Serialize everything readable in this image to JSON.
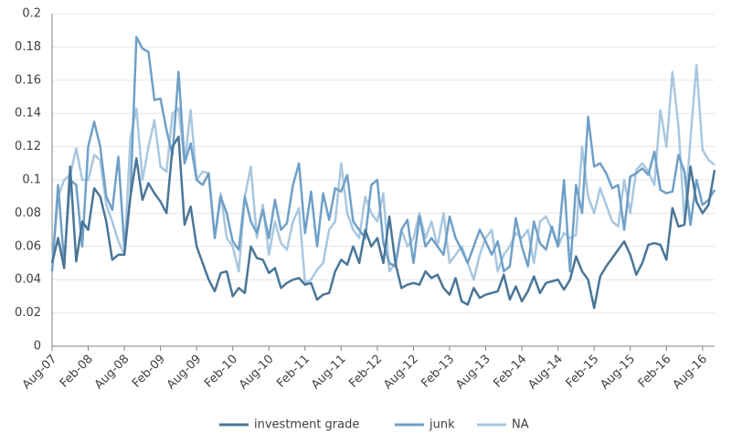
{
  "chart_data": {
    "type": "line",
    "categories": [
      "Aug-07",
      null,
      null,
      null,
      null,
      null,
      "Feb-08",
      null,
      null,
      null,
      null,
      null,
      "Aug-08",
      null,
      null,
      null,
      null,
      null,
      "Feb-09",
      null,
      null,
      null,
      null,
      null,
      "Aug-09",
      null,
      null,
      null,
      null,
      null,
      "Feb-10",
      null,
      null,
      null,
      null,
      null,
      "Aug-10",
      null,
      null,
      null,
      null,
      null,
      "Feb-11",
      null,
      null,
      null,
      null,
      null,
      "Aug-11",
      null,
      null,
      null,
      null,
      null,
      "Feb-12",
      null,
      null,
      null,
      null,
      null,
      "Aug-12",
      null,
      null,
      null,
      null,
      null,
      "Feb-13",
      null,
      null,
      null,
      null,
      null,
      "Aug-13",
      null,
      null,
      null,
      null,
      null,
      "Feb-14",
      null,
      null,
      null,
      null,
      null,
      "Aug-14",
      null,
      null,
      null,
      null,
      null,
      "Feb-15",
      null,
      null,
      null,
      null,
      null,
      "Aug-15",
      null,
      null,
      null,
      null,
      null,
      "Feb-16",
      null,
      null,
      null,
      null,
      null,
      "Aug-16",
      null,
      null
    ],
    "series": [
      {
        "name": "investment grade",
        "color": "#4a7697",
        "values": [
          0.05,
          0.065,
          0.047,
          0.108,
          0.051,
          0.075,
          0.07,
          0.095,
          0.09,
          0.075,
          0.052,
          0.055,
          0.055,
          0.09,
          0.113,
          0.088,
          0.098,
          0.092,
          0.087,
          0.08,
          0.12,
          0.126,
          0.073,
          0.084,
          0.06,
          0.05,
          0.04,
          0.033,
          0.044,
          0.045,
          0.03,
          0.035,
          0.032,
          0.06,
          0.053,
          0.052,
          0.044,
          0.047,
          0.035,
          0.038,
          0.04,
          0.041,
          0.037,
          0.038,
          0.028,
          0.031,
          0.032,
          0.045,
          0.052,
          0.049,
          0.06,
          0.05,
          0.07,
          0.06,
          0.065,
          0.05,
          0.078,
          0.05,
          0.035,
          0.037,
          0.038,
          0.037,
          0.045,
          0.041,
          0.043,
          0.035,
          0.031,
          0.041,
          0.027,
          0.025,
          0.035,
          0.029,
          0.031,
          0.032,
          0.033,
          0.043,
          0.028,
          0.036,
          0.027,
          0.033,
          0.042,
          0.032,
          0.038,
          0.039,
          0.04,
          0.034,
          0.04,
          0.054,
          0.045,
          0.04,
          0.023,
          0.042,
          0.048,
          0.053,
          0.058,
          0.063,
          0.055,
          0.043,
          0.05,
          0.061,
          0.062,
          0.061,
          0.052,
          0.083,
          0.072,
          0.073,
          0.108,
          0.087,
          0.08,
          0.085,
          0.106
        ]
      },
      {
        "name": "junk",
        "color": "#6fa0c8",
        "values": [
          0.045,
          0.097,
          0.05,
          0.1,
          0.097,
          0.06,
          0.12,
          0.135,
          0.12,
          0.09,
          0.082,
          0.114,
          0.06,
          0.09,
          0.186,
          0.179,
          0.177,
          0.148,
          0.149,
          0.13,
          0.115,
          0.165,
          0.11,
          0.122,
          0.1,
          0.097,
          0.104,
          0.065,
          0.09,
          0.08,
          0.063,
          0.058,
          0.09,
          0.075,
          0.068,
          0.082,
          0.065,
          0.088,
          0.07,
          0.074,
          0.097,
          0.11,
          0.068,
          0.093,
          0.06,
          0.092,
          0.076,
          0.095,
          0.093,
          0.103,
          0.075,
          0.07,
          0.065,
          0.097,
          0.1,
          0.062,
          0.05,
          0.048,
          0.07,
          0.076,
          0.05,
          0.078,
          0.06,
          0.065,
          0.06,
          0.055,
          0.078,
          0.065,
          0.058,
          0.05,
          0.06,
          0.07,
          0.063,
          0.055,
          0.063,
          0.045,
          0.048,
          0.077,
          0.06,
          0.048,
          0.075,
          0.062,
          0.058,
          0.072,
          0.06,
          0.1,
          0.045,
          0.097,
          0.08,
          0.138,
          0.108,
          0.11,
          0.104,
          0.095,
          0.097,
          0.07,
          0.102,
          0.104,
          0.107,
          0.103,
          0.117,
          0.094,
          0.092,
          0.093,
          0.115,
          0.105,
          0.073,
          0.1,
          0.085,
          0.088,
          0.094
        ]
      },
      {
        "name": "NA",
        "color": "#a9c7df",
        "values": [
          0.05,
          0.09,
          0.1,
          0.103,
          0.119,
          0.1,
          0.1,
          0.115,
          0.112,
          0.085,
          0.075,
          0.063,
          0.055,
          0.125,
          0.143,
          0.1,
          0.12,
          0.136,
          0.108,
          0.105,
          0.14,
          0.143,
          0.11,
          0.142,
          0.1,
          0.105,
          0.104,
          0.066,
          0.092,
          0.065,
          0.06,
          0.045,
          0.09,
          0.108,
          0.065,
          0.085,
          0.055,
          0.075,
          0.062,
          0.058,
          0.075,
          0.083,
          0.038,
          0.04,
          0.046,
          0.05,
          0.07,
          0.075,
          0.11,
          0.08,
          0.07,
          0.065,
          0.09,
          0.08,
          0.075,
          0.092,
          0.045,
          0.05,
          0.07,
          0.06,
          0.065,
          0.08,
          0.065,
          0.075,
          0.06,
          0.08,
          0.05,
          0.055,
          0.06,
          0.05,
          0.04,
          0.055,
          0.065,
          0.07,
          0.045,
          0.055,
          0.06,
          0.068,
          0.065,
          0.07,
          0.05,
          0.075,
          0.078,
          0.07,
          0.06,
          0.068,
          0.065,
          0.067,
          0.12,
          0.09,
          0.08,
          0.095,
          0.085,
          0.075,
          0.072,
          0.1,
          0.08,
          0.106,
          0.11,
          0.105,
          0.097,
          0.142,
          0.12,
          0.165,
          0.132,
          0.075,
          0.125,
          0.169,
          0.118,
          0.112,
          0.109
        ]
      }
    ],
    "ylim": [
      0,
      0.2
    ],
    "yticks": [
      0,
      0.02,
      0.04,
      0.06,
      0.08,
      0.1,
      0.12,
      0.14,
      0.16,
      0.18,
      0.2
    ],
    "grid": true
  }
}
